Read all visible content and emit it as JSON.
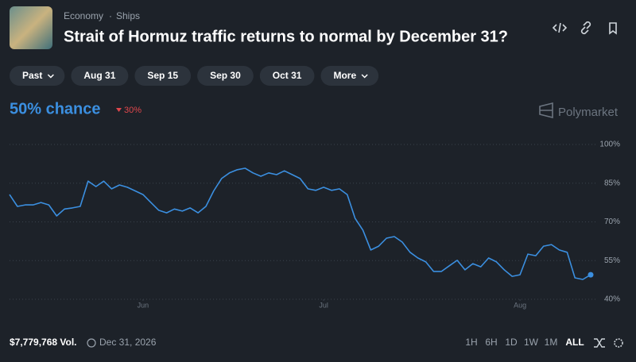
{
  "header": {
    "breadcrumb": [
      "Economy",
      "Ships"
    ],
    "title": "Strait of Hormuz traffic returns to normal by December 31?"
  },
  "filters": [
    "Past",
    "Aug 31",
    "Sep 15",
    "Sep 30",
    "Oct 31",
    "More"
  ],
  "summary": {
    "chance": "50% chance",
    "change": "30%",
    "brand": "Polymarket"
  },
  "chart_data": {
    "type": "line",
    "color": "#3b8fe0",
    "grid": true,
    "values": [
      80.6,
      76,
      76.6,
      76.6,
      77.5,
      76.6,
      72.3,
      75,
      75.4,
      76,
      85.8,
      83.7,
      85.8,
      82.8,
      84.3,
      83.4,
      82,
      80.6,
      77.5,
      74.5,
      73.5,
      75,
      74.2,
      75.4,
      73.5,
      76,
      82,
      86.8,
      89,
      90.2,
      90.8,
      89,
      87.7,
      89,
      88.3,
      89.8,
      88.3,
      86.8,
      82.8,
      82.2,
      83.4,
      82.2,
      82.8,
      80.6,
      71.4,
      66.8,
      59.1,
      60.6,
      63.7,
      64.3,
      62.2,
      58.2,
      56,
      54.5,
      50.8,
      50.8,
      53,
      55.1,
      51.4,
      53.8,
      52.6,
      56,
      54.5,
      51.4,
      48.9,
      49.5,
      57.5,
      56.9,
      60.6,
      61.2,
      59.1,
      58.2,
      48.3,
      47.7,
      49.5
    ],
    "xlim": [
      0,
      74
    ],
    "xticks": [
      {
        "value": 17,
        "label": "Jun"
      },
      {
        "value": 40,
        "label": "Jul"
      },
      {
        "value": 65,
        "label": "Aug"
      }
    ],
    "ylim": [
      40,
      100
    ],
    "yticks": [
      {
        "value": 40,
        "label": "40%"
      },
      {
        "value": 55,
        "label": "55%"
      },
      {
        "value": 70,
        "label": "70%"
      },
      {
        "value": 85,
        "label": "85%"
      },
      {
        "value": 100,
        "label": "100%"
      }
    ]
  },
  "footer": {
    "volume": "$7,779,768 Vol.",
    "end_date": "Dec 31, 2026",
    "timeframes": [
      "1H",
      "6H",
      "1D",
      "1W",
      "1M",
      "ALL"
    ]
  }
}
